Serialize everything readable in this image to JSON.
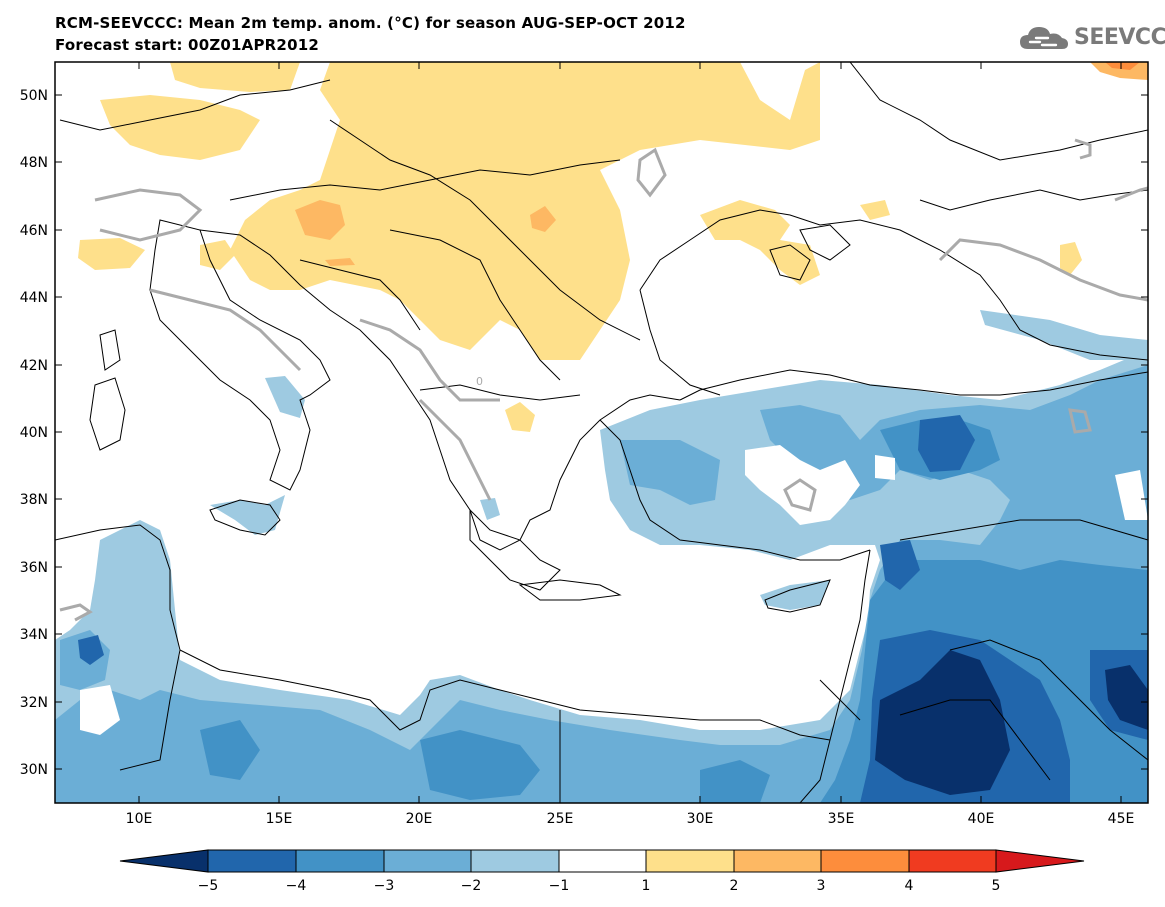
{
  "header": {
    "title_line1": "RCM-SEEVCCC: Mean 2m temp. anom. (°C) for season AUG-SEP-OCT 2012",
    "title_line2": "Forecast start: 00Z01APR2012"
  },
  "logo": {
    "text": "SEEVCCC",
    "icon": "cloud-icon"
  },
  "map": {
    "lon_labels": [
      "10E",
      "15E",
      "20E",
      "25E",
      "30E",
      "35E",
      "40E",
      "45E"
    ],
    "lat_labels": [
      "50N",
      "48N",
      "46N",
      "44N",
      "42N",
      "40N",
      "38N",
      "36N",
      "34N",
      "32N",
      "30N"
    ],
    "contour_label": "0"
  },
  "colorbar": {
    "ticks": [
      "−5",
      "−4",
      "−3",
      "−2",
      "−1",
      "1",
      "2",
      "3",
      "4",
      "5"
    ],
    "colors": [
      "#08306b",
      "#2166ac",
      "#4292c6",
      "#6baed6",
      "#9ecae1",
      "#ffffff",
      "#fee08b",
      "#fdb863",
      "#fd8d3c",
      "#f03b20",
      "#d7191c"
    ]
  },
  "colors": {
    "land_warm1": "#fee08b",
    "land_warm2": "#fdb863",
    "land_warm3": "#fd8d3c",
    "cool1": "#9ecae1",
    "cool2": "#6baed6",
    "cool3": "#4292c6",
    "cool4": "#2166ac",
    "cool5": "#08306b",
    "contour_zero": "#aaaaaa"
  }
}
